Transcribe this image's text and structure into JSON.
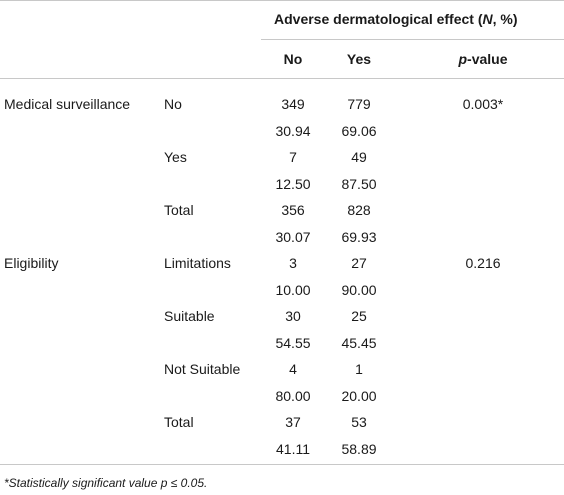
{
  "table": {
    "group_header": {
      "prefix": "Adverse dermatological effect (",
      "n": "N",
      "suffix": ", %)"
    },
    "col_no": "No",
    "col_yes": "Yes",
    "col_p_italic": "p",
    "col_p_rest": "-value",
    "rows": [
      {
        "var": "Medical surveillance",
        "cat": "No",
        "no": "349",
        "yes": "779",
        "p": "0.003*"
      },
      {
        "var": "",
        "cat": "",
        "no": "30.94",
        "yes": "69.06",
        "p": ""
      },
      {
        "var": "",
        "cat": "Yes",
        "no": "7",
        "yes": "49",
        "p": ""
      },
      {
        "var": "",
        "cat": "",
        "no": "12.50",
        "yes": "87.50",
        "p": ""
      },
      {
        "var": "",
        "cat": "Total",
        "no": "356",
        "yes": "828",
        "p": ""
      },
      {
        "var": "",
        "cat": "",
        "no": "30.07",
        "yes": "69.93",
        "p": ""
      },
      {
        "var": "Eligibility",
        "cat": "Limitations",
        "no": "3",
        "yes": "27",
        "p": "0.216"
      },
      {
        "var": "",
        "cat": "",
        "no": "10.00",
        "yes": "90.00",
        "p": ""
      },
      {
        "var": "",
        "cat": "Suitable",
        "no": "30",
        "yes": "25",
        "p": ""
      },
      {
        "var": "",
        "cat": "",
        "no": "54.55",
        "yes": "45.45",
        "p": ""
      },
      {
        "var": "",
        "cat": "Not Suitable",
        "no": "4",
        "yes": "1",
        "p": ""
      },
      {
        "var": "",
        "cat": "",
        "no": "80.00",
        "yes": "20.00",
        "p": ""
      },
      {
        "var": "",
        "cat": "Total",
        "no": "37",
        "yes": "53",
        "p": ""
      },
      {
        "var": "",
        "cat": "",
        "no": "41.11",
        "yes": "58.89",
        "p": ""
      }
    ]
  },
  "footnote": "*Statistically significant value p ≤ 0.05."
}
